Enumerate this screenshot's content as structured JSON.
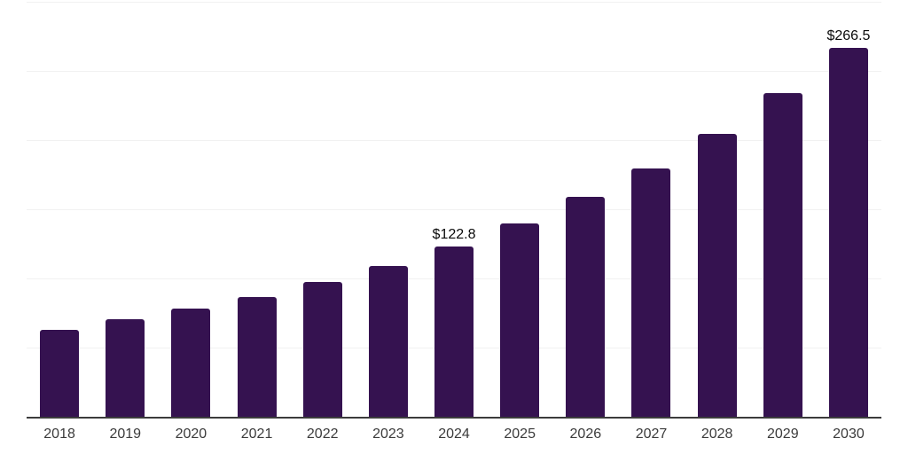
{
  "chart_data": {
    "type": "bar",
    "title": "",
    "xlabel": "",
    "ylabel": "",
    "categories": [
      "2018",
      "2019",
      "2020",
      "2021",
      "2022",
      "2023",
      "2024",
      "2025",
      "2026",
      "2027",
      "2028",
      "2029",
      "2030"
    ],
    "values": [
      63.0,
      70.5,
      78.0,
      86.7,
      97.5,
      109.3,
      122.8,
      139.5,
      158.7,
      179.5,
      204.3,
      233.9,
      266.5
    ],
    "data_labels": [
      "",
      "",
      "",
      "",
      "",
      "",
      "$122.8",
      "",
      "",
      "",
      "",
      "",
      "$266.5"
    ],
    "unit_prefix": "$",
    "ylim": [
      0,
      300
    ],
    "grid_step": 50,
    "grid": true,
    "legend": false,
    "y_tick_labels_visible": false,
    "colors": {
      "bar": "#351250",
      "grid": "#f1f1f1",
      "axis_line": "#3c3c3c",
      "tick_label": "#3b3b3b",
      "data_label": "#0a0a0a",
      "background": "#ffffff"
    }
  }
}
